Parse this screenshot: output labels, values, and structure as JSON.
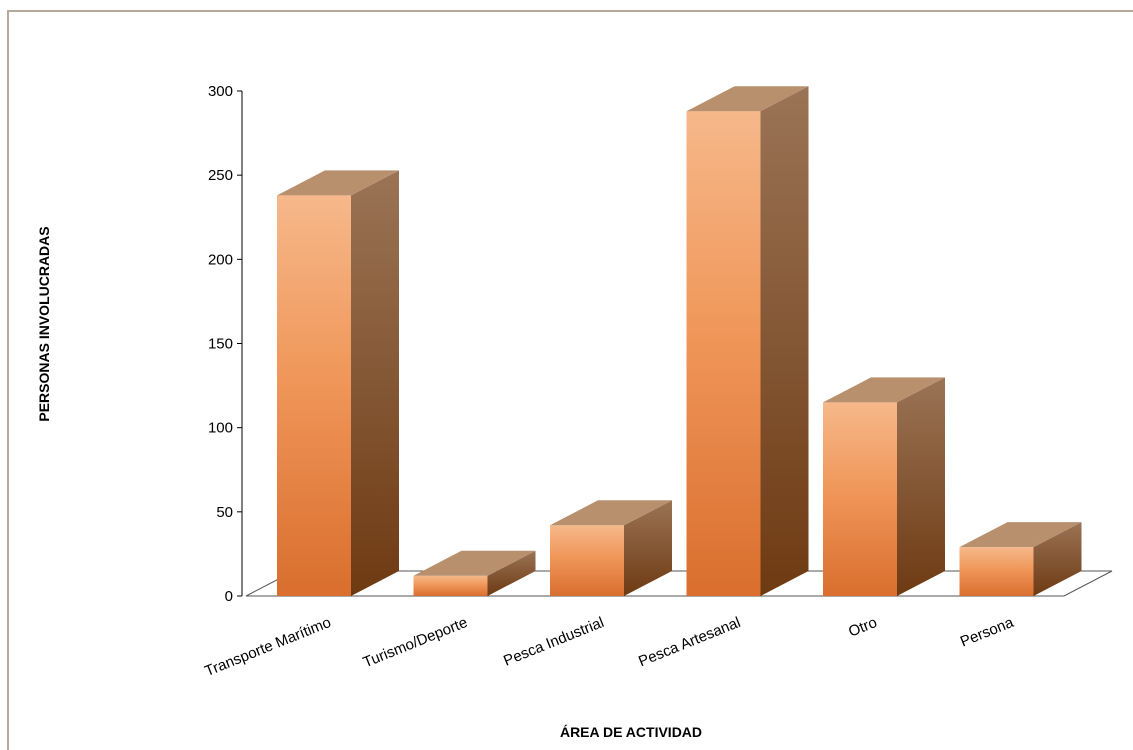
{
  "chart_data": {
    "type": "bar",
    "categories": [
      "Transporte Marítimo",
      "Turismo/Deporte",
      "Pesca Industrial",
      "Pesca Artesanal",
      "Otro",
      "Persona"
    ],
    "values": [
      238,
      12,
      42,
      288,
      115,
      29
    ],
    "xlabel": "ÁREA DE ACTIVIDAD",
    "ylabel": "PERSONAS INVOLUCRADAS",
    "ylim": [
      0,
      300
    ],
    "yticks": [
      0,
      50,
      100,
      150,
      200,
      250,
      300
    ],
    "grid": false,
    "legend": "none",
    "colors": {
      "front_top": "#f6b88a",
      "front_mid": "#f0975a",
      "front_bottom": "#d96e2e",
      "side_top": "#9a7456",
      "side_bottom": "#6e3a12",
      "top_face": "#b8906e",
      "axis": "#000000"
    }
  }
}
